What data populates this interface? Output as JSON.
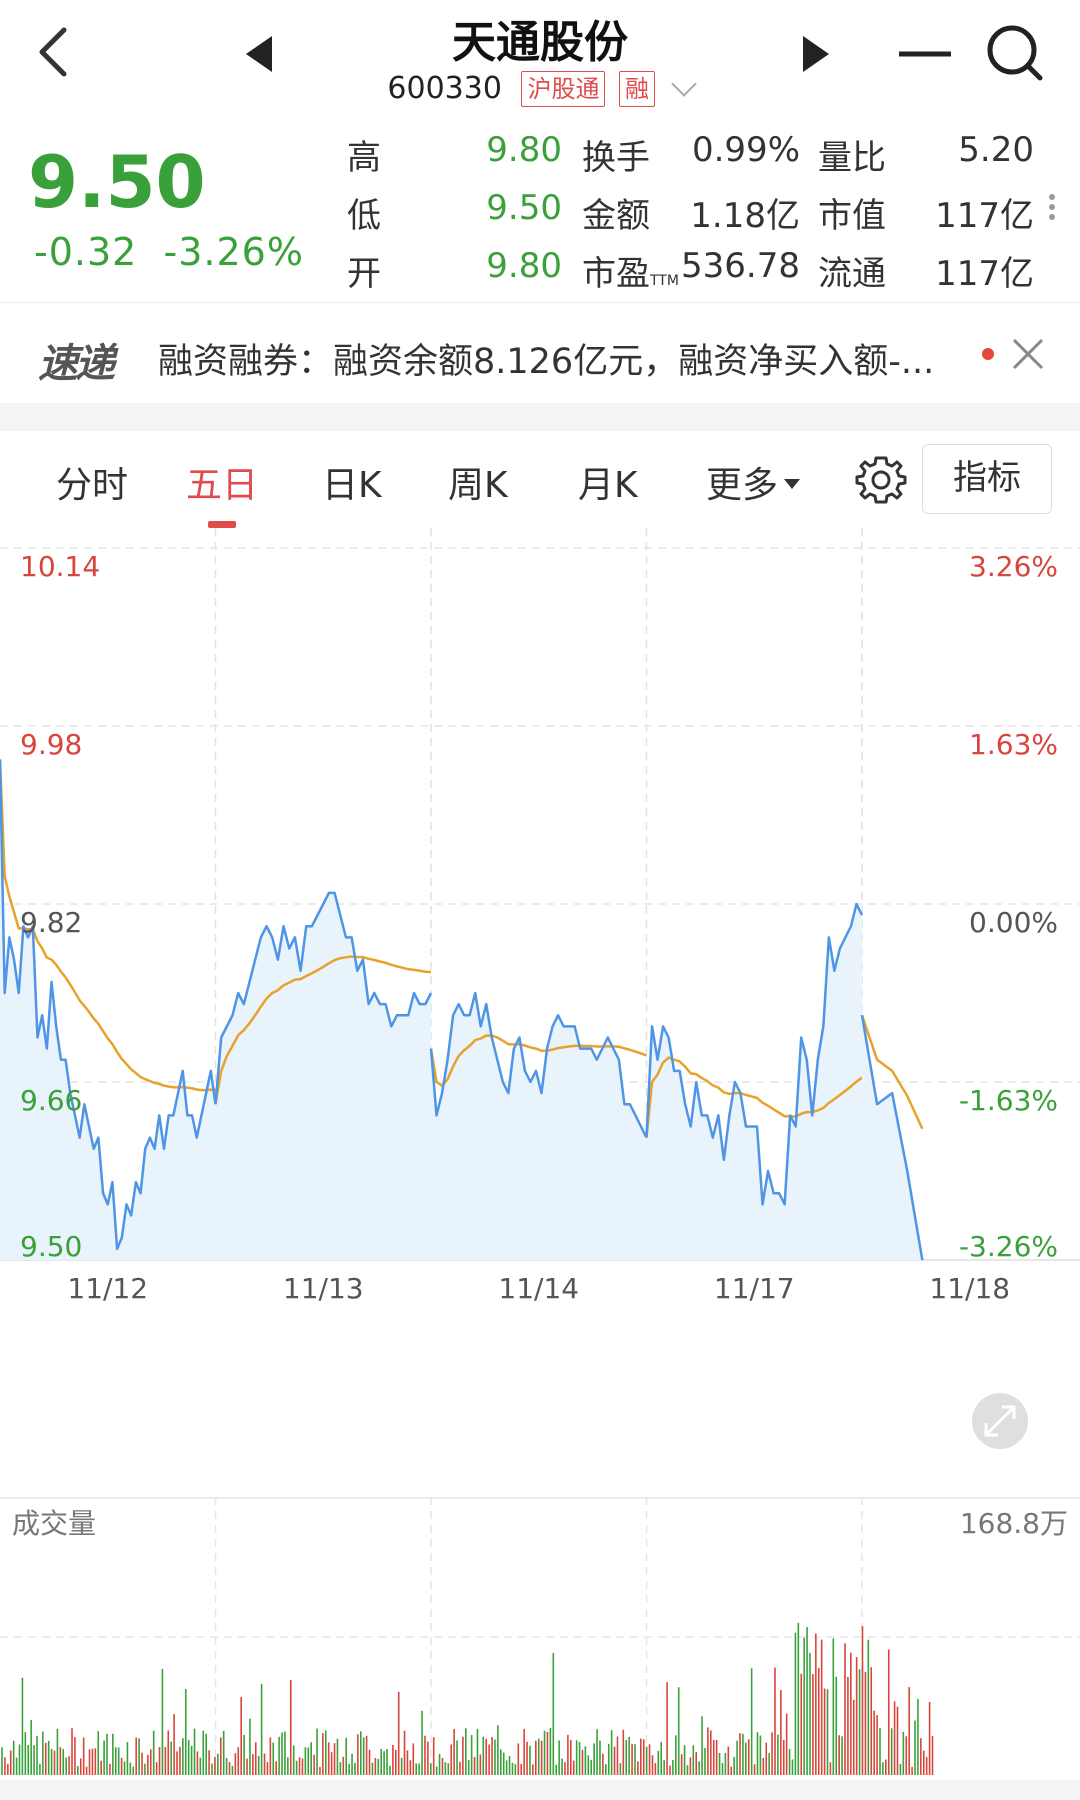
{
  "header": {
    "title": "天通股份",
    "code": "600330",
    "tag1": "沪股通",
    "tag2": "融"
  },
  "quote": {
    "price": "9.50",
    "change": "-0.32",
    "change_pct": "-3.26%",
    "stats": [
      {
        "label": "高",
        "value": "9.80"
      },
      {
        "label": "换手",
        "value": "0.99%"
      },
      {
        "label": "量比",
        "value": "5.20"
      },
      {
        "label": "低",
        "value": "9.50"
      },
      {
        "label": "金额",
        "value": "1.18亿"
      },
      {
        "label": "市值",
        "value": "117亿"
      },
      {
        "label": "开",
        "value": "9.80"
      },
      {
        "label": "市盈",
        "label_sub": "TTM",
        "value": "536.78"
      },
      {
        "label": "流通",
        "value": "117亿"
      }
    ]
  },
  "news": {
    "logo": "速递",
    "text": "融资融券：融资余额8.126亿元，融资净买入额-..."
  },
  "tabs": [
    "分时",
    "五日",
    "日K",
    "周K",
    "月K",
    "更多"
  ],
  "active_tab": "五日",
  "indicator_button": "指标",
  "colors": {
    "up": "#d9453c",
    "down": "#3aa13a",
    "price_line": "#4f95e6",
    "avg_line": "#e7a22a",
    "fill": "#e9f3fc"
  },
  "chart_data": [
    {
      "type": "line",
      "title": "",
      "y_ticks_left": [
        "10.14",
        "9.98",
        "9.82",
        "9.66",
        "9.50"
      ],
      "y_ticks_right": [
        "3.26%",
        "1.63%",
        "0.00%",
        "-1.63%",
        "-3.26%"
      ],
      "ylim": [
        9.5,
        10.14
      ],
      "prev_close": 9.82,
      "x_labels": [
        "11/12",
        "11/13",
        "11/14",
        "11/17",
        "11/18"
      ],
      "series": [
        {
          "values": [
            [
              9.95,
              9.74,
              9.79,
              9.77,
              9.74,
              9.8,
              9.79,
              9.8,
              9.7,
              9.72,
              9.69,
              9.75,
              9.71,
              9.68,
              9.68,
              9.65,
              9.63,
              9.61,
              9.64,
              9.62,
              9.6,
              9.61,
              9.56,
              9.55,
              9.57,
              9.51,
              9.52,
              9.55,
              9.54,
              9.57,
              9.56,
              9.6,
              9.61,
              9.6,
              9.63,
              9.6,
              9.63,
              9.63,
              9.65,
              9.67,
              9.63,
              9.63,
              9.61,
              9.63,
              9.65,
              9.67,
              9.64
            ],
            [
              9.64,
              9.7,
              9.71,
              9.72,
              9.74,
              9.73,
              9.75,
              9.77,
              9.79,
              9.8,
              9.79,
              9.77,
              9.8,
              9.78,
              9.79,
              9.76,
              9.8,
              9.8,
              9.81,
              9.82,
              9.83,
              9.83,
              9.81,
              9.79,
              9.79,
              9.76,
              9.77,
              9.73,
              9.74,
              9.73,
              9.73,
              9.71,
              9.72,
              9.72,
              9.72,
              9.74,
              9.73,
              9.73,
              9.74
            ],
            [
              9.69,
              9.63,
              9.65,
              9.68,
              9.72,
              9.73,
              9.72,
              9.72,
              9.74,
              9.71,
              9.73,
              9.7,
              9.68,
              9.66,
              9.65,
              9.69,
              9.7,
              9.67,
              9.66,
              9.67,
              9.65,
              9.69,
              9.71,
              9.72,
              9.71,
              9.71,
              9.71,
              9.69,
              9.69,
              9.69,
              9.68,
              9.69,
              9.7,
              9.69,
              9.68,
              9.64,
              9.64,
              9.63,
              9.62,
              9.61
            ],
            [
              9.61,
              9.71,
              9.68,
              9.71,
              9.7,
              9.67,
              9.67,
              9.64,
              9.62,
              9.66,
              9.63,
              9.63,
              9.61,
              9.63,
              9.59,
              9.63,
              9.66,
              9.65,
              9.62,
              9.62,
              9.62,
              9.55,
              9.58,
              9.56,
              9.56,
              9.55,
              9.63,
              9.62,
              9.7,
              9.68,
              9.63,
              9.68,
              9.71,
              9.79,
              9.76,
              9.78,
              9.79,
              9.8,
              9.82,
              9.81
            ],
            [
              9.72,
              9.64,
              9.65,
              9.58,
              9.5
            ]
          ]
        }
      ]
    },
    {
      "type": "bar",
      "title": "成交量",
      "ylabel": "168.8万",
      "ylim": [
        0,
        1688000
      ]
    }
  ]
}
